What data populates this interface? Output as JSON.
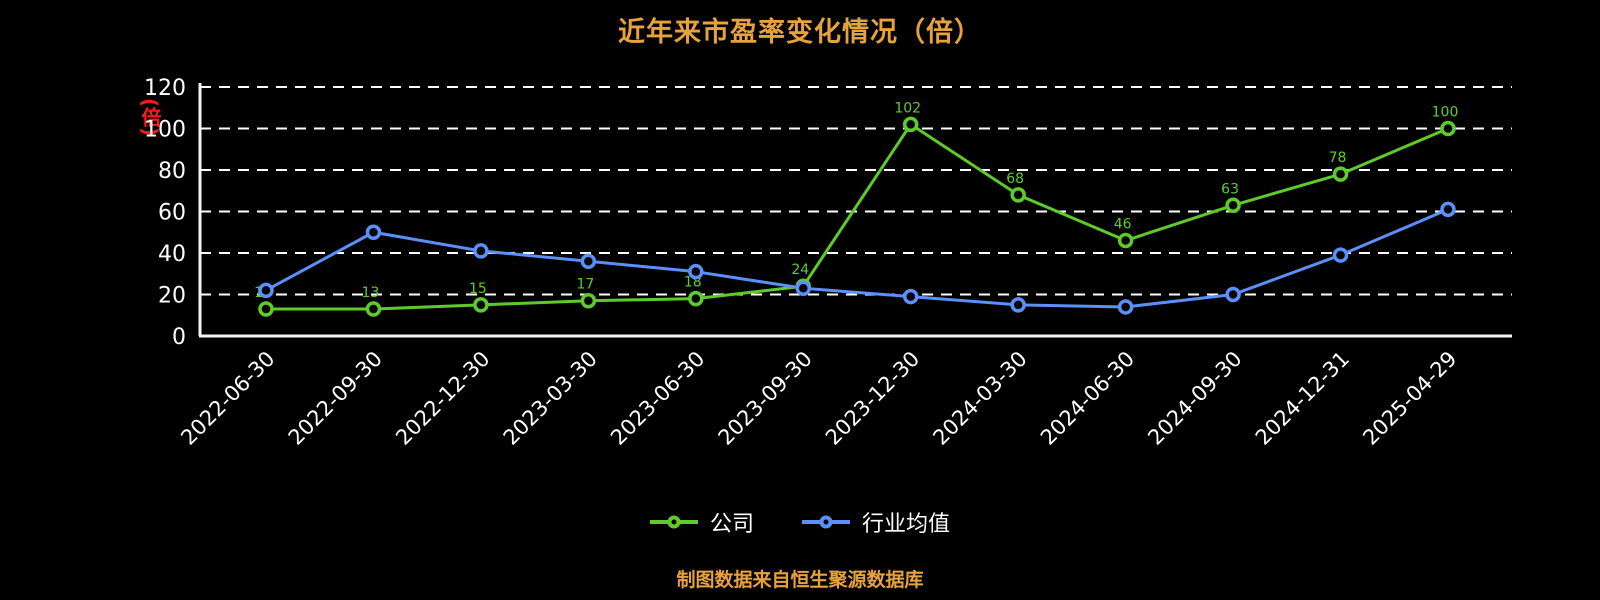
{
  "title": "近年来市盈率变化情况（倍）",
  "y_axis_unit": "(倍)",
  "footer_note": "制图数据来自恒生聚源数据库",
  "colors": {
    "background": "#000000",
    "title": "#e8a23c",
    "footer": "#e8a23c",
    "axis": "#f5f5f5",
    "grid": "#ffffff",
    "tick_label": "#ffffff",
    "unit_label": "#ff1a1a",
    "company": "#5ecb2a",
    "industry": "#5b8ff9"
  },
  "chart_data": {
    "type": "line",
    "title": "近年来市盈率变化情况（倍）",
    "xlabel": "",
    "ylabel": "(倍)",
    "ylim": [
      0,
      120
    ],
    "yticks": [
      0,
      20,
      40,
      60,
      80,
      100,
      120
    ],
    "grid": "horizontal-dashed",
    "legend_position": "bottom",
    "categories": [
      "2022-06-30",
      "2022-09-30",
      "2022-12-30",
      "2023-03-30",
      "2023-06-30",
      "2023-09-30",
      "2023-12-30",
      "2024-03-30",
      "2024-06-30",
      "2024-09-30",
      "2024-12-31",
      "2025-04-29"
    ],
    "series": [
      {
        "name": "公司",
        "color": "#5ecb2a",
        "show_point_labels": true,
        "values": [
          13,
          13,
          15,
          17,
          18,
          24,
          102,
          68,
          46,
          63,
          78,
          100
        ]
      },
      {
        "name": "行业均值",
        "color": "#5b8ff9",
        "show_point_labels": false,
        "values": [
          22,
          50,
          41,
          36,
          31,
          23,
          19,
          15,
          14,
          20,
          39,
          61
        ]
      }
    ]
  }
}
